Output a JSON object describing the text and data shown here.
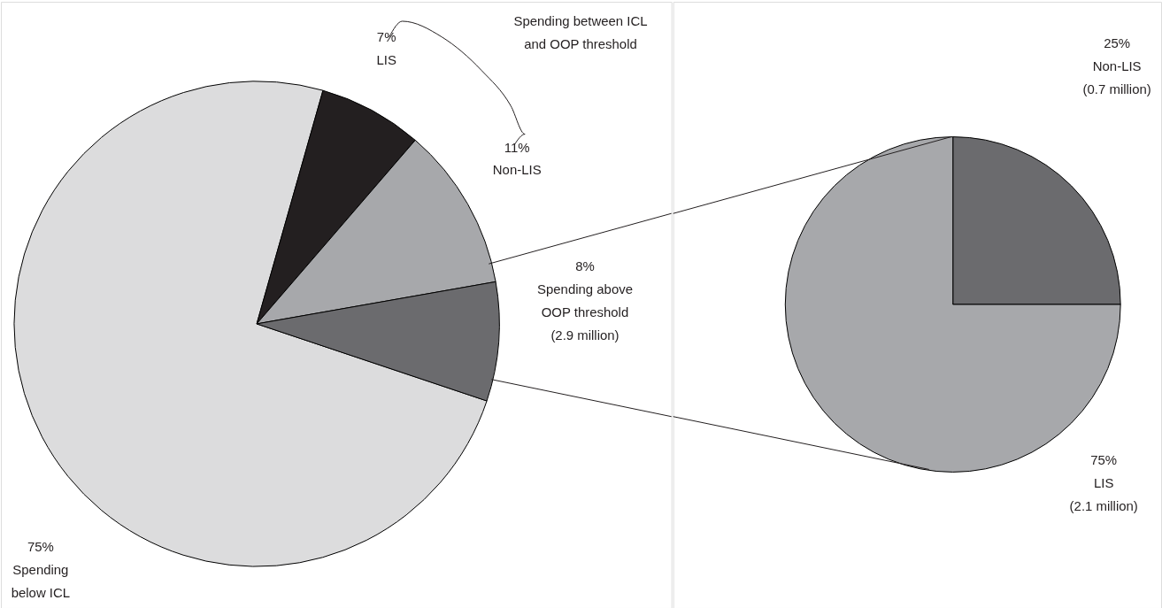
{
  "chart_data": [
    {
      "type": "pie",
      "categories": [
        "Spending\nbelow ICL",
        "LIS",
        "Non-LIS",
        "Spending above\nOOP threshold\n(2.9 million)"
      ],
      "values": [
        75,
        7,
        11,
        8
      ],
      "value_labels": [
        "75%",
        "7%",
        "11%",
        "8%"
      ],
      "colors": [
        "#dcdcdd",
        "#231f20",
        "#a7a8ab",
        "#6b6b6e"
      ],
      "annotations": [
        "Spending between ICL\nand OOP threshold"
      ]
    },
    {
      "type": "pie",
      "categories": [
        "Non-LIS\n(0.7 million)",
        "LIS\n(2.1 million)"
      ],
      "values": [
        25,
        75
      ],
      "value_labels": [
        "25%",
        "75%"
      ],
      "colors": [
        "#6b6b6e",
        "#a7a8ab"
      ]
    }
  ]
}
